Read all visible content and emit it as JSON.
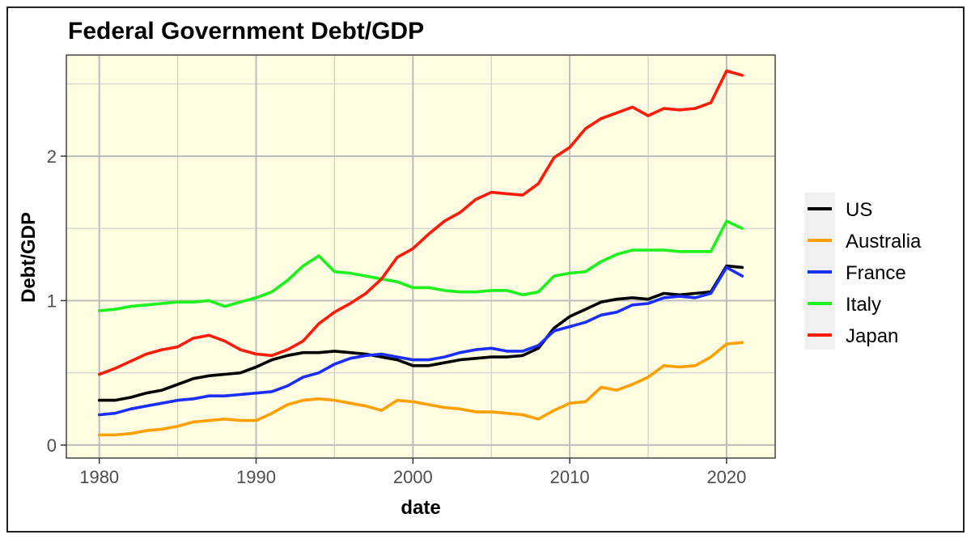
{
  "chart_data": {
    "type": "line",
    "title": "Federal Government Debt/GDP",
    "xlabel": "date",
    "ylabel": "Debt/GDP",
    "xlim": [
      1977.9,
      2023.1
    ],
    "ylim": [
      -0.09,
      2.7
    ],
    "x_ticks": [
      1980,
      1990,
      2000,
      2010,
      2020
    ],
    "x_tick_labels": [
      "1980",
      "1990",
      "2000",
      "2010",
      "2020"
    ],
    "y_ticks": [
      0,
      1,
      2
    ],
    "y_tick_labels": [
      "0",
      "1",
      "2"
    ],
    "y_minor_ticks": [
      0.5,
      1.5,
      2.5
    ],
    "grid": true,
    "panel_background": "#fefde2",
    "legend_position": "right",
    "x": [
      1980,
      1981,
      1982,
      1983,
      1984,
      1985,
      1986,
      1987,
      1988,
      1989,
      1990,
      1991,
      1992,
      1993,
      1994,
      1995,
      1996,
      1997,
      1998,
      1999,
      2000,
      2001,
      2002,
      2003,
      2004,
      2005,
      2006,
      2007,
      2008,
      2009,
      2010,
      2011,
      2012,
      2013,
      2014,
      2015,
      2016,
      2017,
      2018,
      2019,
      2020,
      2021
    ],
    "series": [
      {
        "name": "US",
        "color": "#000000",
        "values": [
          0.31,
          0.31,
          0.33,
          0.36,
          0.38,
          0.42,
          0.46,
          0.48,
          0.49,
          0.5,
          0.54,
          0.59,
          0.62,
          0.64,
          0.64,
          0.65,
          0.64,
          0.63,
          0.61,
          0.59,
          0.55,
          0.55,
          0.57,
          0.59,
          0.6,
          0.61,
          0.61,
          0.62,
          0.67,
          0.81,
          0.89,
          0.94,
          0.99,
          1.01,
          1.02,
          1.01,
          1.05,
          1.04,
          1.05,
          1.06,
          1.24,
          1.23
        ]
      },
      {
        "name": "Australia",
        "color": "#ff9f00",
        "values": [
          0.07,
          0.07,
          0.08,
          0.1,
          0.11,
          0.13,
          0.16,
          0.17,
          0.18,
          0.17,
          0.17,
          0.22,
          0.28,
          0.31,
          0.32,
          0.31,
          0.29,
          0.27,
          0.24,
          0.31,
          0.3,
          0.28,
          0.26,
          0.25,
          0.23,
          0.23,
          0.22,
          0.21,
          0.18,
          0.24,
          0.29,
          0.3,
          0.4,
          0.38,
          0.42,
          0.47,
          0.55,
          0.54,
          0.55,
          0.61,
          0.7,
          0.71
        ]
      },
      {
        "name": "France",
        "color": "#1a2eff",
        "values": [
          0.21,
          0.22,
          0.25,
          0.27,
          0.29,
          0.31,
          0.32,
          0.34,
          0.34,
          0.35,
          0.36,
          0.37,
          0.41,
          0.47,
          0.5,
          0.56,
          0.6,
          0.62,
          0.63,
          0.61,
          0.59,
          0.59,
          0.61,
          0.64,
          0.66,
          0.67,
          0.65,
          0.65,
          0.69,
          0.79,
          0.82,
          0.85,
          0.9,
          0.92,
          0.97,
          0.98,
          1.02,
          1.03,
          1.02,
          1.05,
          1.23,
          1.17
        ]
      },
      {
        "name": "Italy",
        "color": "#1ef21e",
        "values": [
          0.93,
          0.94,
          0.96,
          0.97,
          0.98,
          0.99,
          0.99,
          1.0,
          0.96,
          0.99,
          1.02,
          1.06,
          1.14,
          1.24,
          1.31,
          1.2,
          1.19,
          1.17,
          1.15,
          1.13,
          1.09,
          1.09,
          1.07,
          1.06,
          1.06,
          1.07,
          1.07,
          1.04,
          1.06,
          1.17,
          1.19,
          1.2,
          1.27,
          1.32,
          1.35,
          1.35,
          1.35,
          1.34,
          1.34,
          1.34,
          1.55,
          1.5
        ]
      },
      {
        "name": "Japan",
        "color": "#ff1a0a",
        "values": [
          0.49,
          0.53,
          0.58,
          0.63,
          0.66,
          0.68,
          0.74,
          0.76,
          0.72,
          0.66,
          0.63,
          0.62,
          0.66,
          0.72,
          0.84,
          0.92,
          0.98,
          1.05,
          1.15,
          1.3,
          1.36,
          1.46,
          1.55,
          1.61,
          1.7,
          1.75,
          1.74,
          1.73,
          1.81,
          1.99,
          2.06,
          2.19,
          2.26,
          2.3,
          2.34,
          2.28,
          2.33,
          2.32,
          2.33,
          2.37,
          2.59,
          2.56
        ]
      }
    ]
  }
}
